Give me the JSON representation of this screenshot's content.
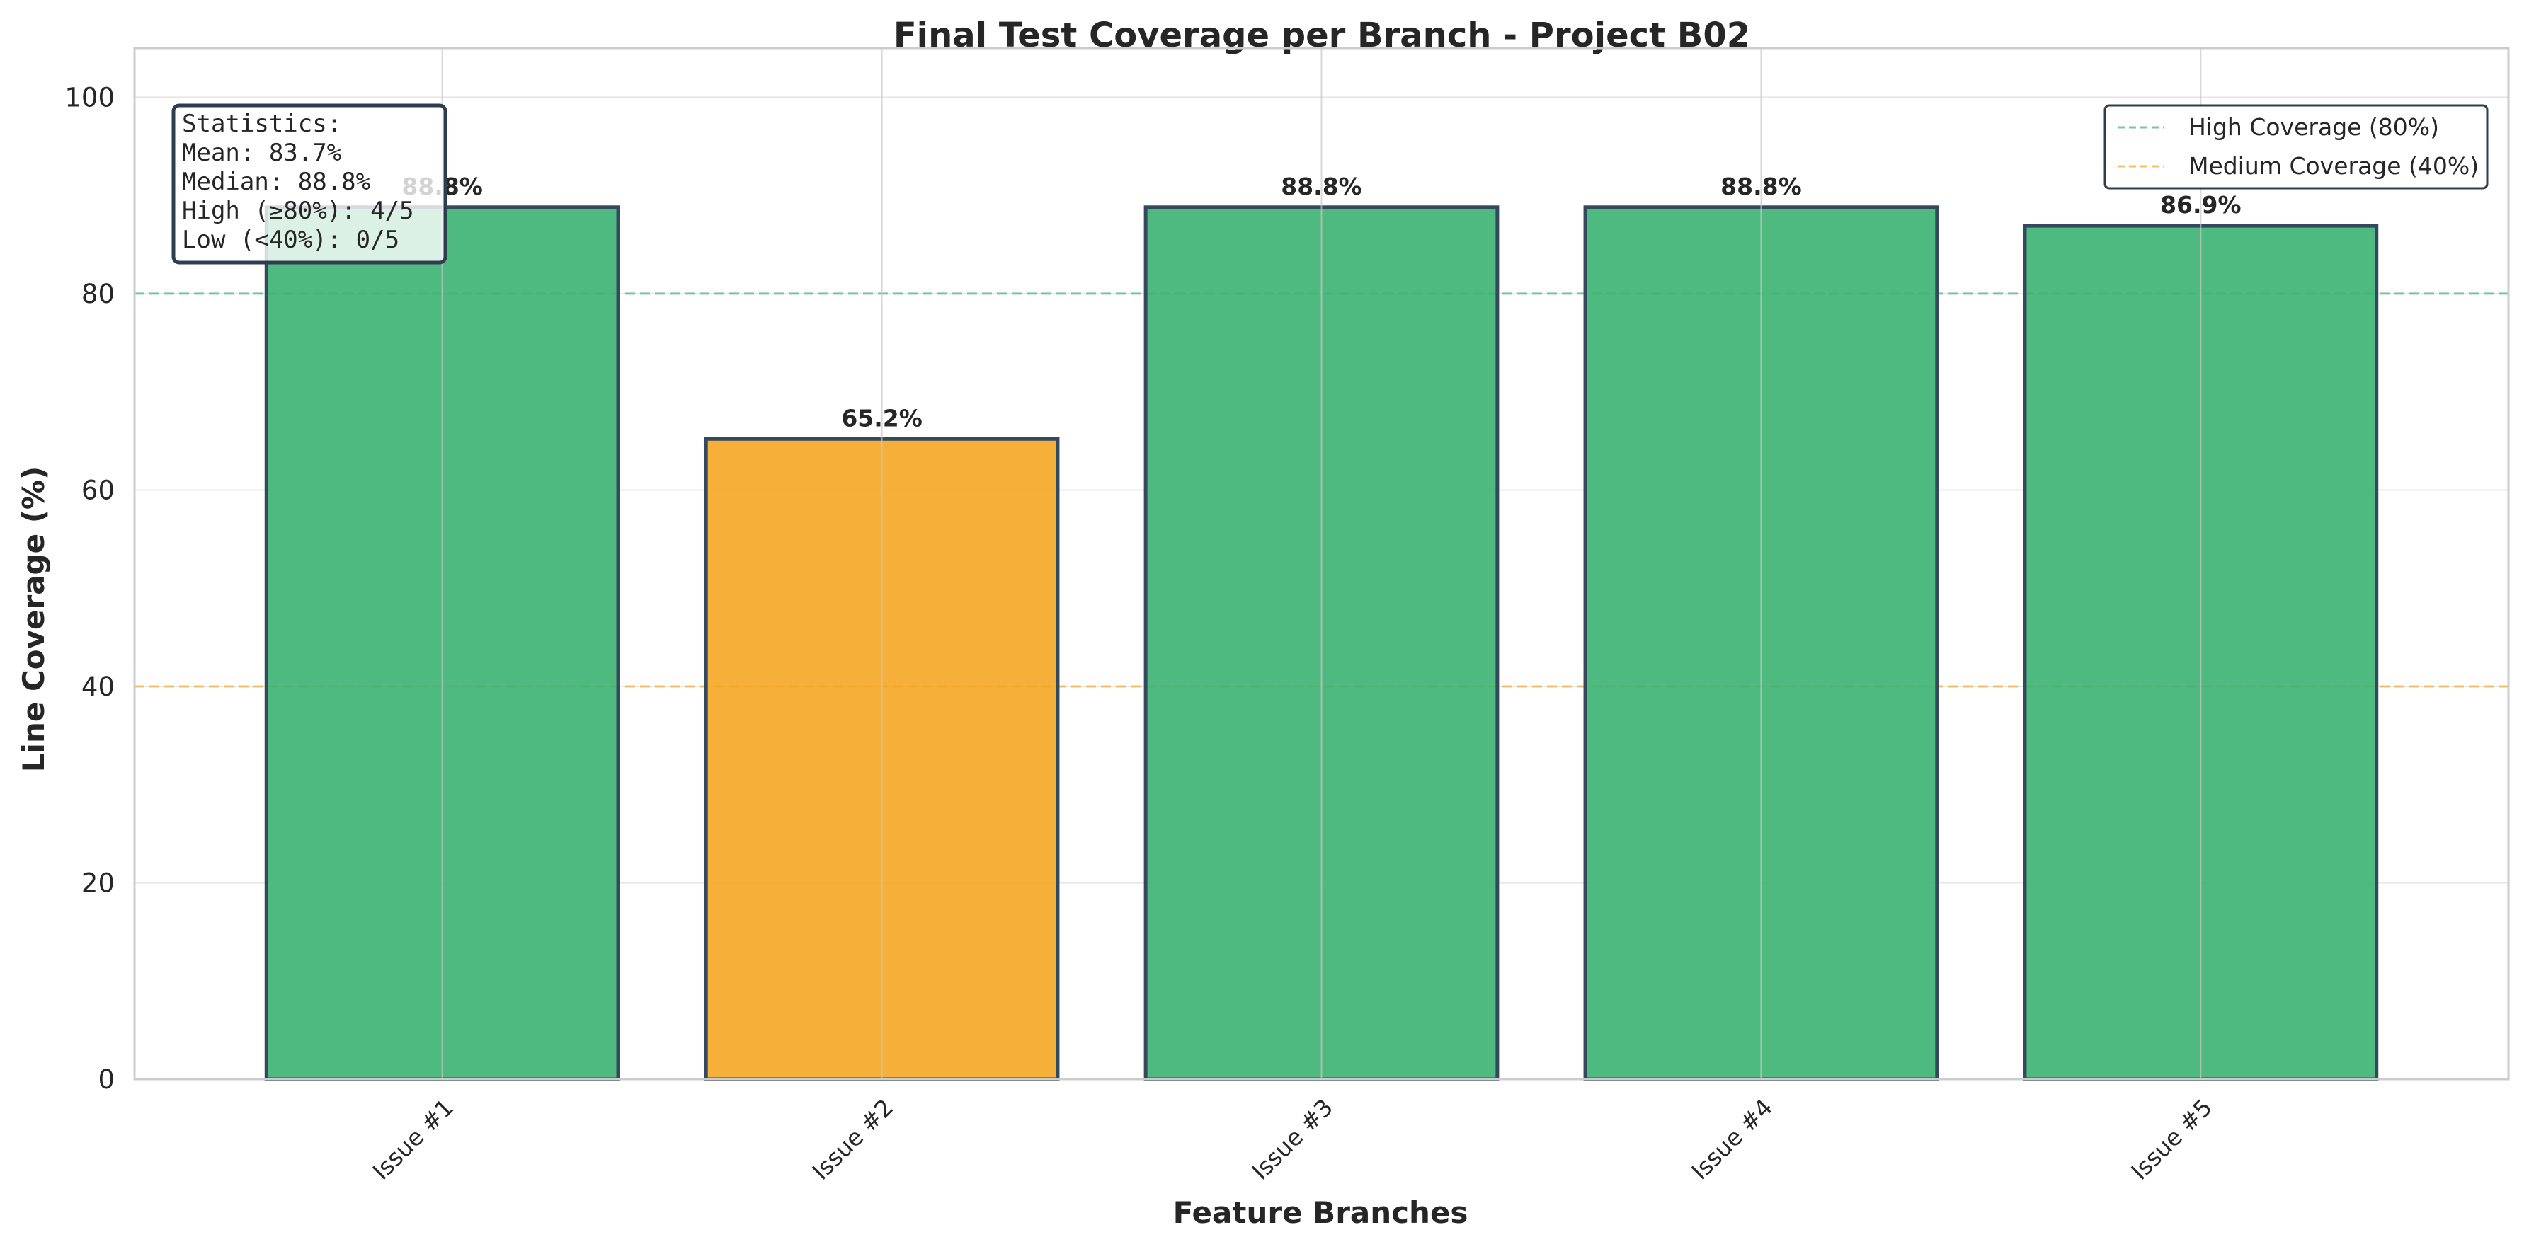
{
  "chart_data": {
    "type": "bar",
    "title": "Final Test Coverage per Branch - Project B02",
    "xlabel": "Feature Branches",
    "ylabel": "Line Coverage (%)",
    "ylim": [
      0,
      105
    ],
    "yticks": [
      "0",
      "20",
      "40",
      "60",
      "80",
      "100"
    ],
    "grid": true,
    "categories": [
      "Issue #1",
      "Issue #2",
      "Issue #3",
      "Issue #4",
      "Issue #5"
    ],
    "values": [
      88.8,
      65.2,
      88.8,
      88.8,
      86.9
    ],
    "value_labels": [
      "88.8%",
      "65.2%",
      "88.8%",
      "88.8%",
      "86.9%"
    ],
    "bar_colors": [
      "#3cb371",
      "#f5a623",
      "#3cb371",
      "#3cb371",
      "#3cb371"
    ],
    "bar_edge_color": "#34495e",
    "reference_lines": [
      {
        "name": "High Coverage (80%)",
        "value": 80,
        "color": "#3cb371",
        "style": "dashed"
      },
      {
        "name": "Medium Coverage (40%)",
        "value": 40,
        "color": "#f5a623",
        "style": "dashed"
      }
    ],
    "legend_placement": "top-right",
    "stats_box": {
      "placement": "top-left",
      "lines": [
        "Statistics:",
        "Mean: 83.7%",
        "Median: 88.8%",
        "High (≥80%): 4/5",
        "Low (<40%): 0/5"
      ]
    }
  }
}
